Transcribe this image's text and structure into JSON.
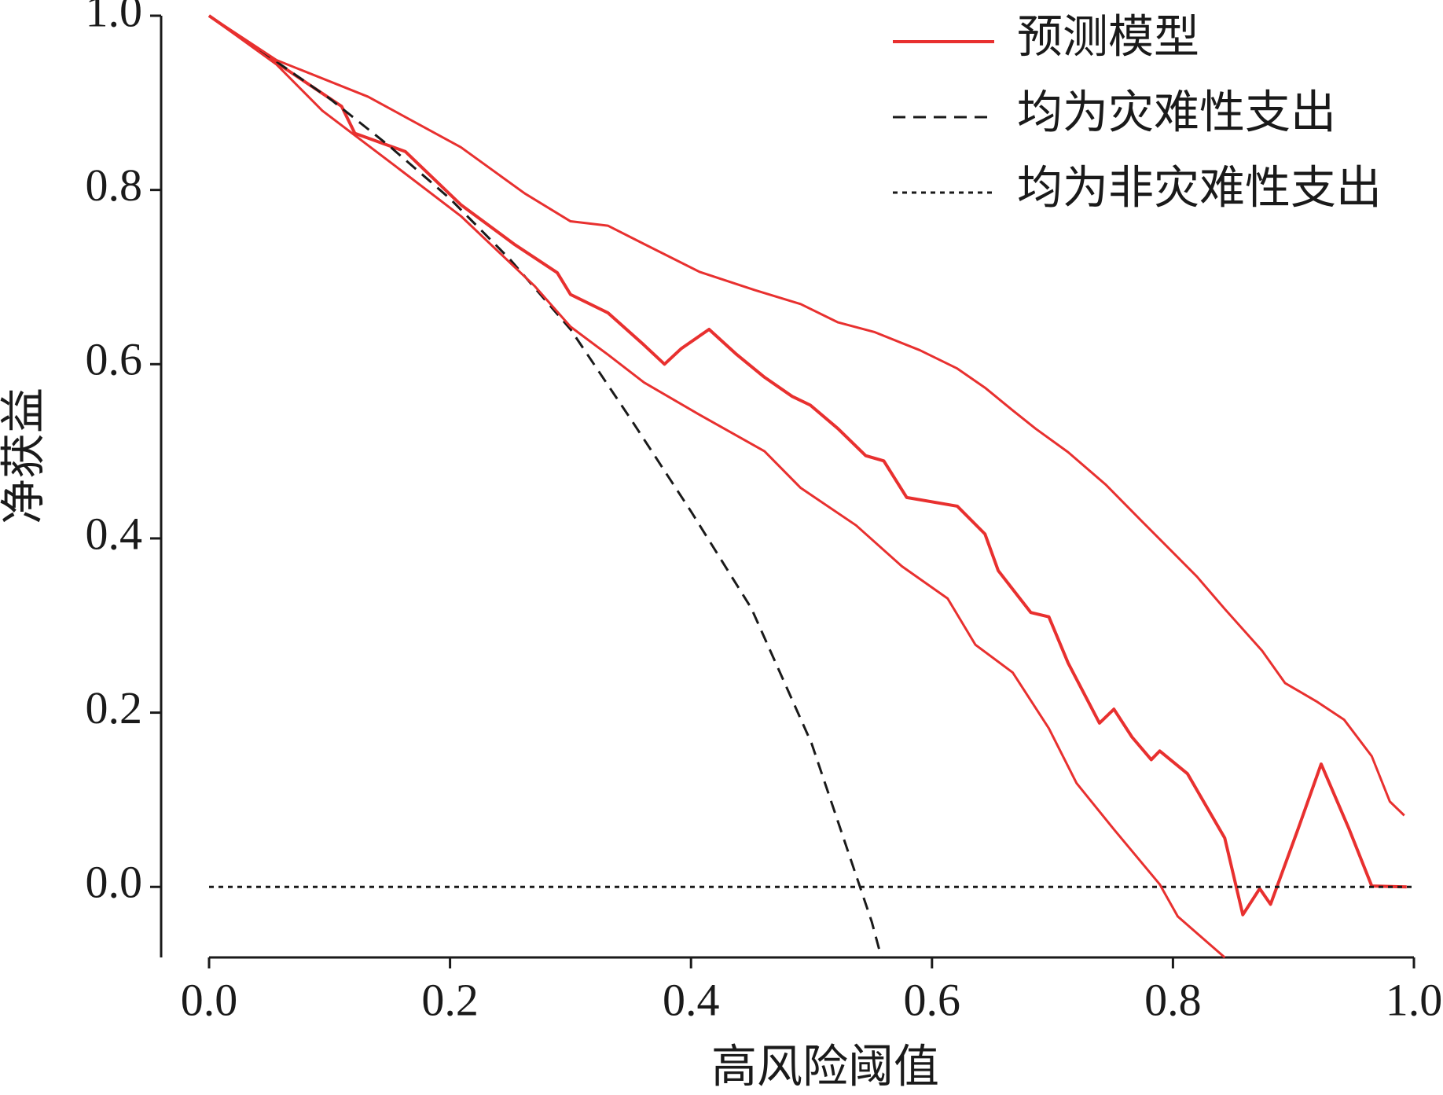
{
  "chart_data": {
    "type": "line",
    "xlabel": "高风险阈值",
    "ylabel": "净获益",
    "xlim": [
      0,
      1
    ],
    "ylim": [
      -0.081,
      1.0
    ],
    "xticks": [
      {
        "value": 0,
        "label": "0.0"
      },
      0.2,
      0.4,
      0.6,
      0.8,
      {
        "value": 1,
        "label": "1.0"
      }
    ],
    "yticks": [
      {
        "value": 0,
        "label": "0.0"
      },
      0.2,
      0.4,
      0.6,
      0.8,
      {
        "value": 1,
        "label": "1.0"
      }
    ],
    "legend": "upper right",
    "series": [
      {
        "name": "预测模型",
        "color": "#e8302f",
        "linestyle": "solid",
        "width": 4,
        "x": [
          0,
          0.056,
          0.11,
          0.121,
          0.163,
          0.209,
          0.254,
          0.289,
          0.3,
          0.331,
          0.361,
          0.378,
          0.392,
          0.415,
          0.438,
          0.461,
          0.484,
          0.499,
          0.522,
          0.545,
          0.56,
          0.579,
          0.621,
          0.644,
          0.655,
          0.682,
          0.697,
          0.713,
          0.739,
          0.751,
          0.766,
          0.782,
          0.789,
          0.812,
          0.843,
          0.858,
          0.872,
          0.881,
          0.904,
          0.923,
          0.946,
          0.965,
          0.994
        ],
        "values": [
          1.0,
          0.946,
          0.896,
          0.865,
          0.844,
          0.783,
          0.737,
          0.705,
          0.68,
          0.659,
          0.622,
          0.6,
          0.618,
          0.64,
          0.611,
          0.585,
          0.563,
          0.553,
          0.526,
          0.495,
          0.489,
          0.447,
          0.437,
          0.405,
          0.363,
          0.315,
          0.31,
          0.257,
          0.188,
          0.204,
          0.172,
          0.146,
          0.156,
          0.13,
          0.056,
          -0.032,
          -0.002,
          -0.02,
          0.067,
          0.141,
          0.067,
          0.001,
          0.0
        ]
      },
      {
        "name": "均为灾难性支出",
        "color": "#1a1a1a",
        "linestyle": "dashed",
        "width": 3,
        "x": [
          0,
          0.05,
          0.1,
          0.15,
          0.2,
          0.25,
          0.3,
          0.35,
          0.4,
          0.45,
          0.5,
          0.55,
          0.558
        ],
        "values": [
          1.0,
          0.953,
          0.905,
          0.85,
          0.79,
          0.72,
          0.64,
          0.537,
          0.431,
          0.32,
          0.165,
          -0.04,
          -0.081
        ]
      },
      {
        "name": "均为非灾难性支出",
        "color": "#1a1a1a",
        "linestyle": "dotted",
        "width": 3,
        "x": [
          0,
          1
        ],
        "values": [
          0,
          0
        ]
      },
      {
        "color": "#e8302f",
        "linestyle": "solid",
        "width": 3,
        "x": [
          0,
          0.056,
          0.132,
          0.209,
          0.262,
          0.3,
          0.331,
          0.361,
          0.407,
          0.453,
          0.491,
          0.522,
          0.552,
          0.59,
          0.621,
          0.644,
          0.667,
          0.686,
          0.713,
          0.744,
          0.774,
          0.797,
          0.82,
          0.843,
          0.874,
          0.893,
          0.919,
          0.942,
          0.965,
          0.98,
          0.992
        ],
        "values": [
          1.0,
          0.949,
          0.907,
          0.849,
          0.796,
          0.764,
          0.759,
          0.738,
          0.706,
          0.685,
          0.669,
          0.648,
          0.637,
          0.616,
          0.595,
          0.573,
          0.547,
          0.526,
          0.499,
          0.462,
          0.42,
          0.388,
          0.356,
          0.319,
          0.271,
          0.234,
          0.213,
          0.192,
          0.15,
          0.098,
          0.082
        ]
      },
      {
        "color": "#e8302f",
        "linestyle": "solid",
        "width": 3,
        "x": [
          0,
          0.056,
          0.094,
          0.155,
          0.209,
          0.27,
          0.3,
          0.331,
          0.361,
          0.407,
          0.461,
          0.491,
          0.537,
          0.575,
          0.613,
          0.636,
          0.667,
          0.697,
          0.72,
          0.751,
          0.789,
          0.804,
          0.843
        ],
        "values": [
          1.0,
          0.944,
          0.891,
          0.827,
          0.77,
          0.69,
          0.643,
          0.611,
          0.579,
          0.542,
          0.5,
          0.458,
          0.415,
          0.368,
          0.331,
          0.278,
          0.246,
          0.182,
          0.119,
          0.066,
          0.003,
          -0.034,
          -0.081
        ]
      }
    ]
  }
}
